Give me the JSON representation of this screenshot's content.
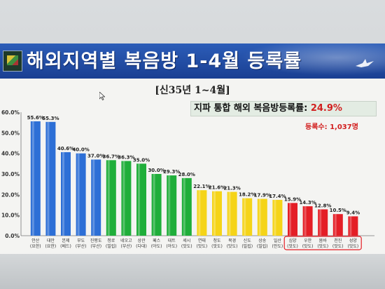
{
  "title": "해외지역별 복음방 1-4월 등록률",
  "subtitle": "[신35년 1~4월]",
  "summary": {
    "label": "지파 통합 해외 복음방등록률:",
    "value": "24.9%"
  },
  "count": "등록수: 1,037명",
  "colors": {
    "blue": "#2d6fd6",
    "green": "#1fae3a",
    "yellow": "#f5d418",
    "red": "#e41e26",
    "header": "#1f4aa3"
  },
  "chart_data": {
    "type": "bar",
    "ylim": [
      0,
      60
    ],
    "y_ticks": [
      "0.0%",
      "10.0%",
      "20.0%",
      "30.0%",
      "40.0%",
      "50.0%",
      "60.0%"
    ],
    "categories": [
      {
        "line1": "안산",
        "line2": "(요한)",
        "value": 55.6,
        "label": "55.6%",
        "color": "blue"
      },
      {
        "line1": "대만",
        "line2": "(요한)",
        "value": 55.3,
        "label": "55.3%",
        "color": "blue"
      },
      {
        "line1": "본제",
        "line2": "(베드)",
        "value": 40.6,
        "label": "40.6%",
        "color": "blue"
      },
      {
        "line1": "부도",
        "line2": "(부산)",
        "value": 40.0,
        "label": "40.0%",
        "color": "blue"
      },
      {
        "line1": "진평도",
        "line2": "(부산)",
        "value": 37.0,
        "label": "37.0%",
        "color": "blue"
      },
      {
        "line1": "청로",
        "line2": "(빌립)",
        "value": 36.7,
        "label": "36.7%",
        "color": "green"
      },
      {
        "line1": "네오고",
        "line2": "(부산)",
        "value": 36.3,
        "label": "36.3%",
        "color": "green"
      },
      {
        "line1": "상관",
        "line2": "(다대)",
        "value": 35.0,
        "label": "35.0%",
        "color": "green"
      },
      {
        "line1": "페스",
        "line2": "(야도)",
        "value": 30.0,
        "label": "30.0%",
        "color": "green"
      },
      {
        "line1": "대트",
        "line2": "(야도)",
        "value": 29.3,
        "label": "29.3%",
        "color": "green"
      },
      {
        "line1": "세시",
        "line2": "(맛도)",
        "value": 28.0,
        "label": "28.0%",
        "color": "green"
      },
      {
        "line1": "연태",
        "line2": "(맛도)",
        "value": 22.1,
        "label": "22.1%",
        "color": "yellow"
      },
      {
        "line1": "청도",
        "line2": "(맛도)",
        "value": 21.6,
        "label": "21.6%",
        "color": "yellow"
      },
      {
        "line1": "북경",
        "line2": "(맛도)",
        "value": 21.3,
        "label": "21.3%",
        "color": "yellow"
      },
      {
        "line1": "신도",
        "line2": "(빌립)",
        "value": 18.2,
        "label": "18.2%",
        "color": "yellow"
      },
      {
        "line1": "상송",
        "line2": "(빌립)",
        "value": 17.9,
        "label": "17.9%",
        "color": "yellow"
      },
      {
        "line1": "일산",
        "line2": "(안도)",
        "value": 17.4,
        "label": "17.4%",
        "color": "yellow"
      },
      {
        "line1": "심양",
        "line2": "(맛도)",
        "value": 15.9,
        "label": "15.9%",
        "color": "red"
      },
      {
        "line1": "우한",
        "line2": "(맛도)",
        "value": 14.3,
        "label": "14.3%",
        "color": "red"
      },
      {
        "line1": "뭄바",
        "line2": "(맛도)",
        "value": 12.8,
        "label": "12.8%",
        "color": "red"
      },
      {
        "line1": "천진",
        "line2": "(맛도)",
        "value": 10.5,
        "label": "10.5%",
        "color": "red"
      },
      {
        "line1": "성양",
        "line2": "(맛도)",
        "value": 9.4,
        "label": "9.4%",
        "color": "red"
      }
    ]
  }
}
